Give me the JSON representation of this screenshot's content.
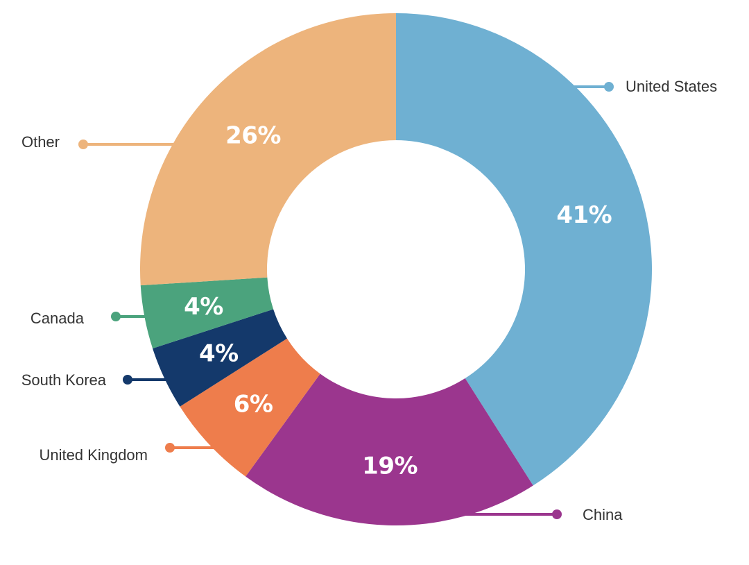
{
  "chart_data": {
    "type": "pie",
    "subtype": "donut",
    "title": "",
    "legend": "none",
    "slices": [
      {
        "label": "United States",
        "value": 41,
        "value_label": "41%",
        "color": "#6FB0D2"
      },
      {
        "label": "China",
        "value": 19,
        "value_label": "19%",
        "color": "#9B368E"
      },
      {
        "label": "United Kingdom",
        "value": 6,
        "value_label": "6%",
        "color": "#EE7D4C"
      },
      {
        "label": "South Korea",
        "value": 4,
        "value_label": "4%",
        "color": "#14396B"
      },
      {
        "label": "Canada",
        "value": 4,
        "value_label": "4%",
        "color": "#4BA37D"
      },
      {
        "label": "Other",
        "value": 26,
        "value_label": "26%",
        "color": "#EDB47C"
      }
    ]
  }
}
